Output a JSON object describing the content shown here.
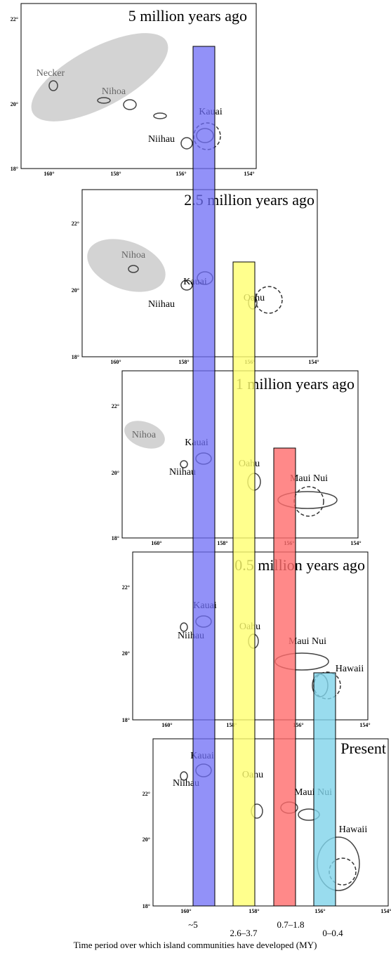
{
  "panels": [
    {
      "title": "5 million years ago",
      "yticks": [
        "22°",
        "20°",
        "18°"
      ],
      "xticks": [
        "160°",
        "158°",
        "156°",
        "154°"
      ],
      "islands": [
        "Necker",
        "Nihoa",
        "Kauai",
        "Niihau"
      ]
    },
    {
      "title": "2.5 million years ago",
      "yticks": [
        "22°",
        "20°",
        "18°"
      ],
      "xticks": [
        "160°",
        "158°",
        "156°",
        "154°"
      ],
      "islands": [
        "Nihoa",
        "Kauai",
        "Niihau",
        "Oahu"
      ]
    },
    {
      "title": "1 million years ago",
      "yticks": [
        "22°",
        "20°",
        "18°"
      ],
      "xticks": [
        "160°",
        "158°",
        "156°",
        "154°"
      ],
      "islands": [
        "Nihoa",
        "Kauai",
        "Niihau",
        "Oahu",
        "Maui Nui"
      ]
    },
    {
      "title": "0.5 million years ago",
      "yticks": [
        "22°",
        "20°",
        "18°"
      ],
      "xticks": [
        "160°",
        "158°",
        "156°",
        "154°"
      ],
      "islands": [
        "Kauai",
        "Niihau",
        "Oahu",
        "Maui Nui",
        "Hawaii"
      ]
    },
    {
      "title": "Present",
      "yticks": [
        "22°",
        "20°",
        "18°"
      ],
      "xticks": [
        "160°",
        "158°",
        "156°",
        "154°"
      ],
      "islands": [
        "Kauai",
        "Niihau",
        "Oahu",
        "Maui Nui",
        "Hawaii"
      ]
    }
  ],
  "periods": [
    "~5",
    "2.6–3.7",
    "0.7–1.8",
    "0–0.4"
  ],
  "caption": "Time period over which island communities have developed (MY)"
}
